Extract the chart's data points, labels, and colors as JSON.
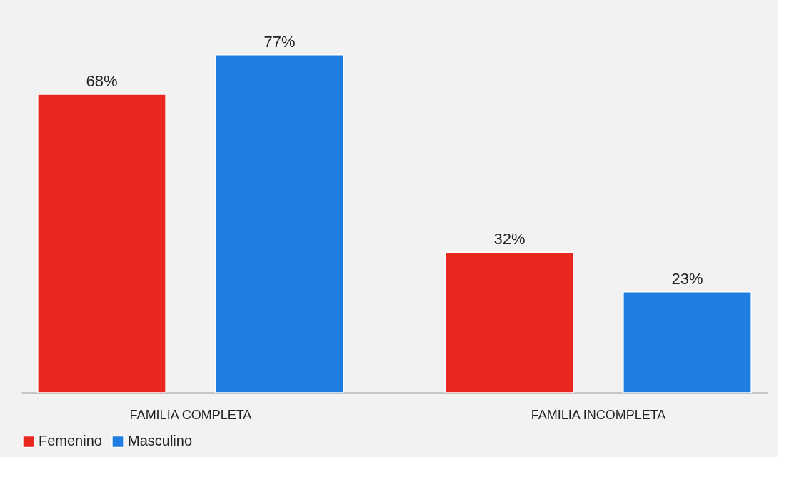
{
  "chart_data": {
    "type": "bar",
    "categories": [
      "FAMILIA COMPLETA",
      "FAMILIA INCOMPLETA"
    ],
    "series": [
      {
        "name": "Femenino",
        "color": "#e8271f",
        "values": [
          68,
          32
        ],
        "value_labels": [
          "68%",
          "32%"
        ]
      },
      {
        "name": "Masculino",
        "color": "#1f7ee0",
        "values": [
          77,
          23
        ],
        "value_labels": [
          "77%",
          "23%"
        ]
      }
    ],
    "legend": "bottom",
    "grid": false,
    "tick_labels": "x"
  }
}
